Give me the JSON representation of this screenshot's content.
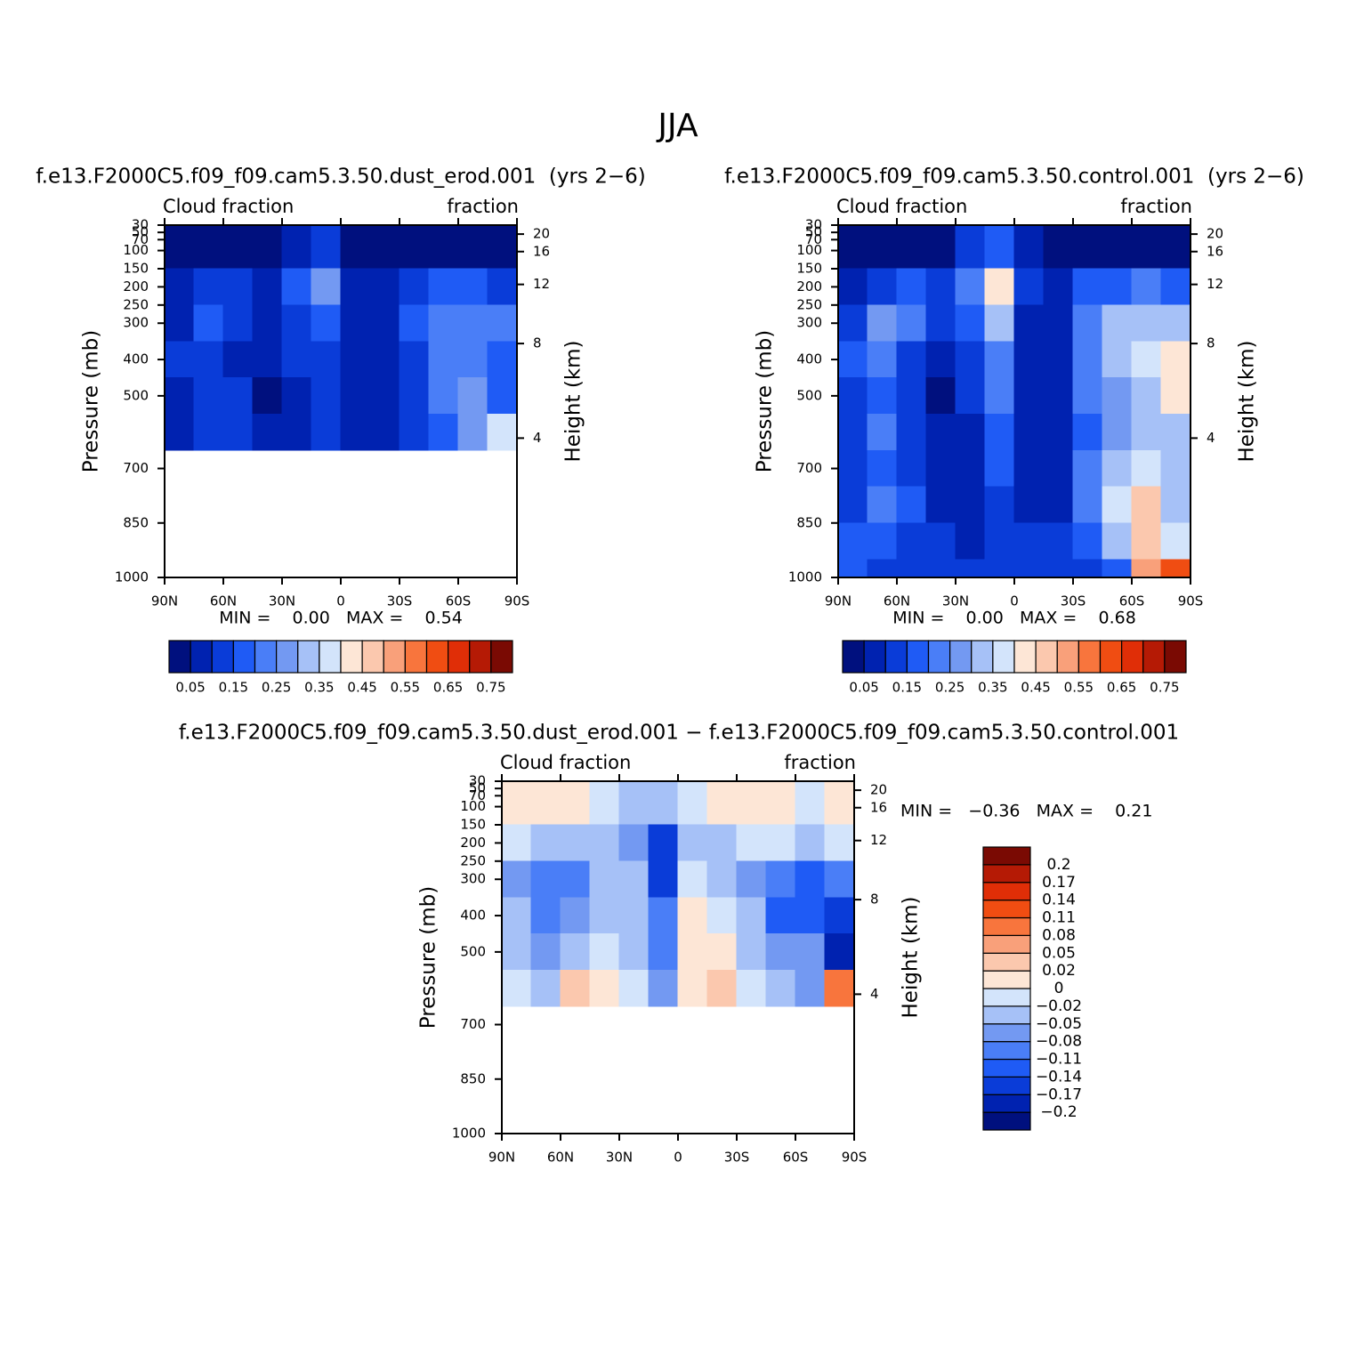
{
  "title": "JJA",
  "chart_data": [
    {
      "type": "contour",
      "subtitle": "f.e13.F2000C5.f09_f09.cam5.3.50.dust_erod.001  (yrs 2−6)",
      "left_label": "Cloud fraction",
      "right_label": "fraction",
      "y_label": "Pressure (mb)",
      "y2_label": "Height (km)",
      "stats": "MIN =    0.00   MAX =    0.54",
      "x": [
        82.5,
        67.5,
        52.5,
        37.5,
        22.5,
        7.5,
        -7.5,
        -22.5,
        -37.5,
        -52.5,
        -67.5,
        -82.5
      ],
      "y": [
        100,
        200,
        300,
        400,
        500,
        600,
        700,
        800,
        900,
        1000
      ],
      "z": [
        [
          0.02,
          0.02,
          0.02,
          0.03,
          0.08,
          0.12,
          0.04,
          0.02,
          0.02,
          0.02,
          0.02,
          0.02
        ],
        [
          0.05,
          0.1,
          0.12,
          0.08,
          0.15,
          0.25,
          0.08,
          0.05,
          0.13,
          0.15,
          0.15,
          0.12
        ],
        [
          0.08,
          0.15,
          0.13,
          0.08,
          0.12,
          0.15,
          0.07,
          0.05,
          0.15,
          0.2,
          0.22,
          0.2
        ],
        [
          0.1,
          0.12,
          0.08,
          0.05,
          0.12,
          0.12,
          0.07,
          0.05,
          0.14,
          0.2,
          0.2,
          0.18
        ],
        [
          0.08,
          0.12,
          0.1,
          0.04,
          0.07,
          0.12,
          0.06,
          0.06,
          0.14,
          0.2,
          0.25,
          0.15
        ],
        [
          0.08,
          0.1,
          0.1,
          0.07,
          0.06,
          0.1,
          0.07,
          0.08,
          0.12,
          0.18,
          0.25,
          0.35
        ],
        [
          null,
          null,
          null,
          null,
          null,
          null,
          null,
          null,
          null,
          null,
          null,
          null
        ],
        [
          null,
          null,
          null,
          null,
          null,
          null,
          null,
          null,
          null,
          null,
          null,
          null
        ],
        [
          null,
          null,
          null,
          null,
          null,
          null,
          null,
          null,
          null,
          null,
          null,
          null
        ],
        [
          null,
          null,
          null,
          null,
          null,
          null,
          null,
          null,
          null,
          null,
          null,
          null
        ]
      ],
      "xlim": [
        90,
        -90
      ],
      "xticks": [
        {
          "value": 90,
          "label": "90N"
        },
        {
          "value": 60,
          "label": "60N"
        },
        {
          "value": 30,
          "label": "30N"
        },
        0,
        {
          "value": -30,
          "label": "30S"
        },
        {
          "value": -60,
          "label": "60S"
        },
        {
          "value": -90,
          "label": "90S"
        }
      ],
      "ylim": [
        1000,
        30
      ],
      "yticks": [
        30,
        50,
        70,
        100,
        150,
        200,
        250,
        300,
        400,
        500,
        700,
        850,
        1000
      ],
      "y2ticks": [
        4,
        8,
        12,
        16,
        20
      ],
      "colorbar": "horizontal",
      "label_stride": 2,
      "levels": [
        0.05,
        0.1,
        0.15,
        0.2,
        0.25,
        0.3,
        0.35,
        0.4,
        0.45,
        0.5,
        0.55,
        0.6,
        0.65,
        0.7,
        0.75
      ],
      "colors": [
        "#00107e",
        "#0022b0",
        "#0a3cd8",
        "#1f5bf5",
        "#4a7ef7",
        "#7399f2",
        "#a6c1f7",
        "#d3e4fb",
        "#fde6d6",
        "#fbc8ae",
        "#f9a07a",
        "#f8753d",
        "#f04d12",
        "#e02e07",
        "#b51a05",
        "#7a0a03"
      ]
    },
    {
      "type": "contour",
      "subtitle": "f.e13.F2000C5.f09_f09.cam5.3.50.control.001  (yrs 2−6)",
      "left_label": "Cloud fraction",
      "right_label": "fraction",
      "y_label": "Pressure (mb)",
      "y2_label": "Height (km)",
      "stats": "MIN =    0.00   MAX =    0.68",
      "x": [
        82.5,
        67.5,
        52.5,
        37.5,
        22.5,
        7.5,
        -7.5,
        -22.5,
        -37.5,
        -52.5,
        -67.5,
        -82.5
      ],
      "y": [
        100,
        200,
        300,
        400,
        500,
        600,
        700,
        800,
        900,
        1000
      ],
      "z": [
        [
          0.02,
          0.02,
          0.02,
          0.03,
          0.1,
          0.15,
          0.05,
          0.02,
          0.02,
          0.02,
          0.02,
          0.02
        ],
        [
          0.07,
          0.12,
          0.15,
          0.1,
          0.2,
          0.4,
          0.1,
          0.08,
          0.15,
          0.17,
          0.2,
          0.15
        ],
        [
          0.12,
          0.25,
          0.2,
          0.1,
          0.15,
          0.3,
          0.08,
          0.05,
          0.2,
          0.3,
          0.33,
          0.3
        ],
        [
          0.15,
          0.2,
          0.12,
          0.05,
          0.12,
          0.2,
          0.08,
          0.05,
          0.2,
          0.3,
          0.35,
          0.4
        ],
        [
          0.12,
          0.18,
          0.12,
          0.04,
          0.1,
          0.2,
          0.08,
          0.05,
          0.2,
          0.28,
          0.33,
          0.4
        ],
        [
          0.12,
          0.2,
          0.14,
          0.07,
          0.07,
          0.17,
          0.08,
          0.06,
          0.18,
          0.28,
          0.3,
          0.3
        ],
        [
          0.1,
          0.17,
          0.14,
          0.05,
          0.07,
          0.15,
          0.07,
          0.06,
          0.2,
          0.3,
          0.35,
          0.3
        ],
        [
          0.12,
          0.2,
          0.15,
          0.06,
          0.06,
          0.13,
          0.08,
          0.09,
          0.2,
          0.35,
          0.45,
          0.3
        ],
        [
          0.15,
          0.18,
          0.12,
          0.1,
          0.08,
          0.14,
          0.1,
          0.1,
          0.15,
          0.3,
          0.45,
          0.35
        ],
        [
          0.15,
          0.12,
          0.1,
          0.1,
          0.1,
          0.12,
          0.1,
          0.1,
          0.1,
          0.15,
          0.5,
          0.6
        ]
      ],
      "xlim": [
        90,
        -90
      ],
      "xticks": [
        {
          "value": 90,
          "label": "90N"
        },
        {
          "value": 60,
          "label": "60N"
        },
        {
          "value": 30,
          "label": "30N"
        },
        0,
        {
          "value": -30,
          "label": "30S"
        },
        {
          "value": -60,
          "label": "60S"
        },
        {
          "value": -90,
          "label": "90S"
        }
      ],
      "ylim": [
        1000,
        30
      ],
      "yticks": [
        30,
        50,
        70,
        100,
        150,
        200,
        250,
        300,
        400,
        500,
        700,
        850,
        1000
      ],
      "y2ticks": [
        4,
        8,
        12,
        16,
        20
      ],
      "colorbar": "horizontal",
      "label_stride": 2,
      "levels": [
        0.05,
        0.1,
        0.15,
        0.2,
        0.25,
        0.3,
        0.35,
        0.4,
        0.45,
        0.5,
        0.55,
        0.6,
        0.65,
        0.7,
        0.75
      ],
      "colors": [
        "#00107e",
        "#0022b0",
        "#0a3cd8",
        "#1f5bf5",
        "#4a7ef7",
        "#7399f2",
        "#a6c1f7",
        "#d3e4fb",
        "#fde6d6",
        "#fbc8ae",
        "#f9a07a",
        "#f8753d",
        "#f04d12",
        "#e02e07",
        "#b51a05",
        "#7a0a03"
      ]
    },
    {
      "type": "contour",
      "subtitle": "f.e13.F2000C5.f09_f09.cam5.3.50.dust_erod.001 − f.e13.F2000C5.f09_f09.cam5.3.50.control.001",
      "left_label": "Cloud fraction",
      "right_label": "fraction",
      "y_label": "Pressure (mb)",
      "y2_label": "Height (km)",
      "stats": "MIN =   −0.36   MAX =    0.21",
      "x": [
        82.5,
        67.5,
        52.5,
        37.5,
        22.5,
        7.5,
        -7.5,
        -22.5,
        -37.5,
        -52.5,
        -67.5,
        -82.5
      ],
      "y": [
        100,
        200,
        300,
        400,
        500,
        600,
        700,
        800,
        900,
        1000
      ],
      "z": [
        [
          0.01,
          0.0,
          0.0,
          -0.01,
          -0.03,
          -0.04,
          -0.01,
          0.0,
          0.0,
          0.0,
          -0.01,
          0.0
        ],
        [
          -0.02,
          -0.03,
          -0.04,
          -0.03,
          -0.06,
          -0.15,
          -0.04,
          -0.03,
          -0.02,
          -0.02,
          -0.04,
          -0.02
        ],
        [
          -0.06,
          -0.1,
          -0.09,
          -0.05,
          -0.05,
          -0.15,
          -0.01,
          -0.03,
          -0.06,
          -0.1,
          -0.12,
          -0.1
        ],
        [
          -0.05,
          -0.1,
          -0.06,
          -0.03,
          -0.03,
          -0.09,
          0.01,
          -0.01,
          -0.05,
          -0.12,
          -0.13,
          -0.15
        ],
        [
          -0.04,
          -0.06,
          -0.03,
          -0.02,
          -0.03,
          -0.1,
          0.01,
          0.01,
          -0.04,
          -0.08,
          -0.08,
          -0.2
        ],
        [
          -0.02,
          -0.03,
          0.03,
          0.0,
          -0.02,
          -0.06,
          0.0,
          0.03,
          -0.02,
          -0.05,
          -0.08,
          0.1
        ],
        [
          null,
          null,
          null,
          null,
          null,
          null,
          null,
          null,
          null,
          null,
          null,
          null
        ],
        [
          null,
          null,
          null,
          null,
          null,
          null,
          null,
          null,
          null,
          null,
          null,
          null
        ],
        [
          null,
          null,
          null,
          null,
          null,
          null,
          null,
          null,
          null,
          null,
          null,
          null
        ],
        [
          null,
          null,
          null,
          null,
          null,
          null,
          null,
          null,
          null,
          null,
          null,
          null
        ]
      ],
      "xlim": [
        90,
        -90
      ],
      "xticks": [
        {
          "value": 90,
          "label": "90N"
        },
        {
          "value": 60,
          "label": "60N"
        },
        {
          "value": 30,
          "label": "30N"
        },
        0,
        {
          "value": -30,
          "label": "30S"
        },
        {
          "value": -60,
          "label": "60S"
        },
        {
          "value": -90,
          "label": "90S"
        }
      ],
      "ylim": [
        1000,
        30
      ],
      "yticks": [
        30,
        50,
        70,
        100,
        150,
        200,
        250,
        300,
        400,
        500,
        700,
        850,
        1000
      ],
      "y2ticks": [
        4,
        8,
        12,
        16,
        20
      ],
      "colorbar": "vertical",
      "label_stride": 1,
      "levels": [
        {
          "value": -0.2,
          "label": "−0.2"
        },
        {
          "value": -0.17,
          "label": "−0.17"
        },
        {
          "value": -0.14,
          "label": "−0.14"
        },
        {
          "value": -0.11,
          "label": "−0.11"
        },
        {
          "value": -0.08,
          "label": "−0.08"
        },
        {
          "value": -0.05,
          "label": "−0.05"
        },
        {
          "value": -0.02,
          "label": "−0.02"
        },
        0,
        0.02,
        0.05,
        0.08,
        0.11,
        0.14,
        0.17,
        0.2
      ],
      "colors": [
        "#00107e",
        "#0022b0",
        "#0a3cd8",
        "#1f5bf5",
        "#4a7ef7",
        "#7399f2",
        "#a6c1f7",
        "#d3e4fb",
        "#fde6d6",
        "#fbc8ae",
        "#f9a07a",
        "#f8753d",
        "#f04d12",
        "#e02e07",
        "#b51a05",
        "#7a0a03"
      ]
    }
  ]
}
